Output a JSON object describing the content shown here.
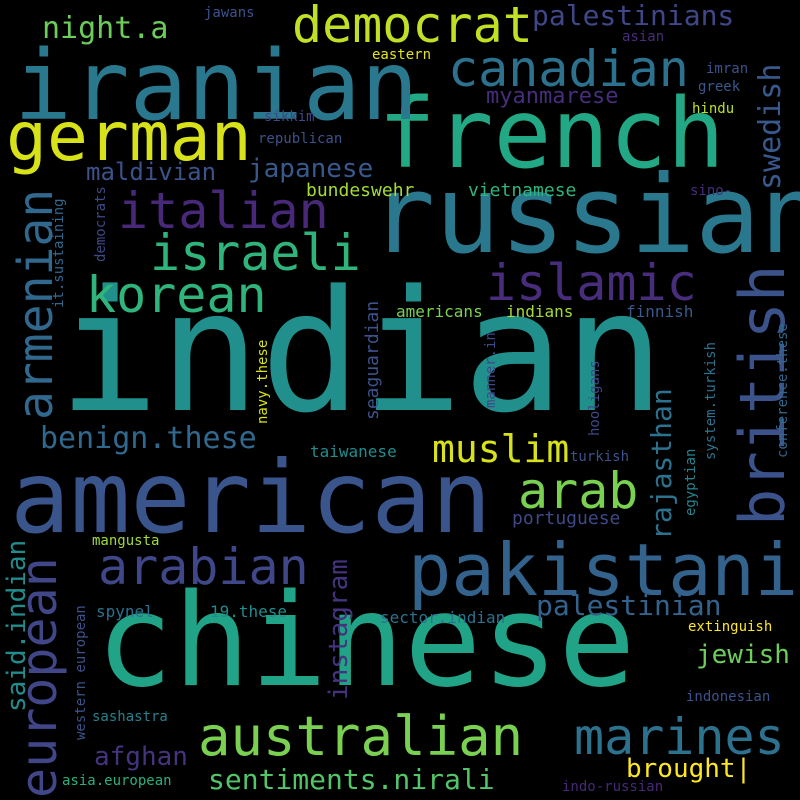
{
  "words": [
    {
      "text": "indian",
      "color": "#21908c"
    },
    {
      "text": "chinese",
      "color": "#20a386"
    },
    {
      "text": "american",
      "color": "#3a548c"
    },
    {
      "text": "russian",
      "color": "#2a788e"
    },
    {
      "text": "french",
      "color": "#22a884"
    },
    {
      "text": "iranian",
      "color": "#2a788e"
    },
    {
      "text": "german",
      "color": "#d8e219"
    },
    {
      "text": "pakistani",
      "color": "#33638d"
    },
    {
      "text": "australian",
      "color": "#7ad151"
    },
    {
      "text": "british",
      "color": "#3b528b"
    },
    {
      "text": "democrat",
      "color": "#c0df25"
    },
    {
      "text": "canadian",
      "color": "#2c728e"
    },
    {
      "text": "italian",
      "color": "#482878"
    },
    {
      "text": "korean",
      "color": "#2fb47c"
    },
    {
      "text": "israeli",
      "color": "#2fb47c"
    },
    {
      "text": "islamic",
      "color": "#472d7b"
    },
    {
      "text": "arabian",
      "color": "#3f4788"
    },
    {
      "text": "arab",
      "color": "#7ad151"
    },
    {
      "text": "marines",
      "color": "#2c728e"
    },
    {
      "text": "european",
      "color": "#404688"
    },
    {
      "text": "armenian",
      "color": "#31688e"
    },
    {
      "text": "muslim",
      "color": "#d8e219"
    },
    {
      "text": "palestinians",
      "color": "#3f4788"
    },
    {
      "text": "swedish",
      "color": "#38598c"
    },
    {
      "text": "rajasthan",
      "color": "#2c728e"
    },
    {
      "text": "benign.these",
      "color": "#31688e"
    },
    {
      "text": "palestinian",
      "color": "#33638d"
    },
    {
      "text": "sentiments.nirali",
      "color": "#52c569"
    },
    {
      "text": "night.a",
      "color": "#6ccd5a"
    },
    {
      "text": "japanese",
      "color": "#38598c"
    },
    {
      "text": "maldivian",
      "color": "#3b528b"
    },
    {
      "text": "myanmarese",
      "color": "#472d7b"
    },
    {
      "text": "jewish",
      "color": "#6ccd5a"
    },
    {
      "text": "brought|",
      "color": "#fde725"
    },
    {
      "text": "afghan",
      "color": "#46337e"
    },
    {
      "text": "instagram",
      "color": "#46337e"
    },
    {
      "text": "said.indian",
      "color": "#228c8d"
    },
    {
      "text": "bundeswehr",
      "color": "#a5db36"
    },
    {
      "text": "vietnamese",
      "color": "#2fb47c"
    },
    {
      "text": "portuguese",
      "color": "#3e4989"
    },
    {
      "text": "seaguardian",
      "color": "#3b528b"
    },
    {
      "text": "americans",
      "color": "#7ad151"
    },
    {
      "text": "indians",
      "color": "#a5db36"
    },
    {
      "text": "taiwanese",
      "color": "#228c8d"
    },
    {
      "text": "turkish",
      "color": "#3b528b"
    },
    {
      "text": "finnish",
      "color": "#38598c"
    },
    {
      "text": "hindu",
      "color": "#bddf26"
    },
    {
      "text": "imran",
      "color": "#3b528b"
    },
    {
      "text": "greek",
      "color": "#38598c"
    },
    {
      "text": "eastern",
      "color": "#e5e419"
    },
    {
      "text": "asian",
      "color": "#472d7b"
    },
    {
      "text": "jawans",
      "color": "#3b528b"
    },
    {
      "text": "sikkim",
      "color": "#3f4788"
    },
    {
      "text": "republican",
      "color": "#3b528b"
    },
    {
      "text": "sino-",
      "color": "#472d7b"
    },
    {
      "text": "democrats",
      "color": "#3e4989"
    },
    {
      "text": "it.sustaining",
      "color": "#31688e"
    },
    {
      "text": "navy.these",
      "color": "#d8e219"
    },
    {
      "text": "manner.in",
      "color": "#3e4989"
    },
    {
      "text": "hooligans",
      "color": "#3e4989"
    },
    {
      "text": "egyptian",
      "color": "#26828e"
    },
    {
      "text": "system.turkish",
      "color": "#2c728e"
    },
    {
      "text": "conference.these",
      "color": "#31688e"
    },
    {
      "text": "mangusta",
      "color": "#a0da39"
    },
    {
      "text": "spynel",
      "color": "#2c728e"
    },
    {
      "text": "19.these",
      "color": "#228c8d"
    },
    {
      "text": "sector.indian",
      "color": "#2c728e"
    },
    {
      "text": "extinguish",
      "color": "#fde725"
    },
    {
      "text": "western european",
      "color": "#3b528b"
    },
    {
      "text": "sashastra",
      "color": "#26828e"
    },
    {
      "text": "indonesian",
      "color": "#3b528b"
    },
    {
      "text": "asia.european",
      "color": "#2ab07f"
    },
    {
      "text": "indo-russian",
      "color": "#482878"
    }
  ]
}
